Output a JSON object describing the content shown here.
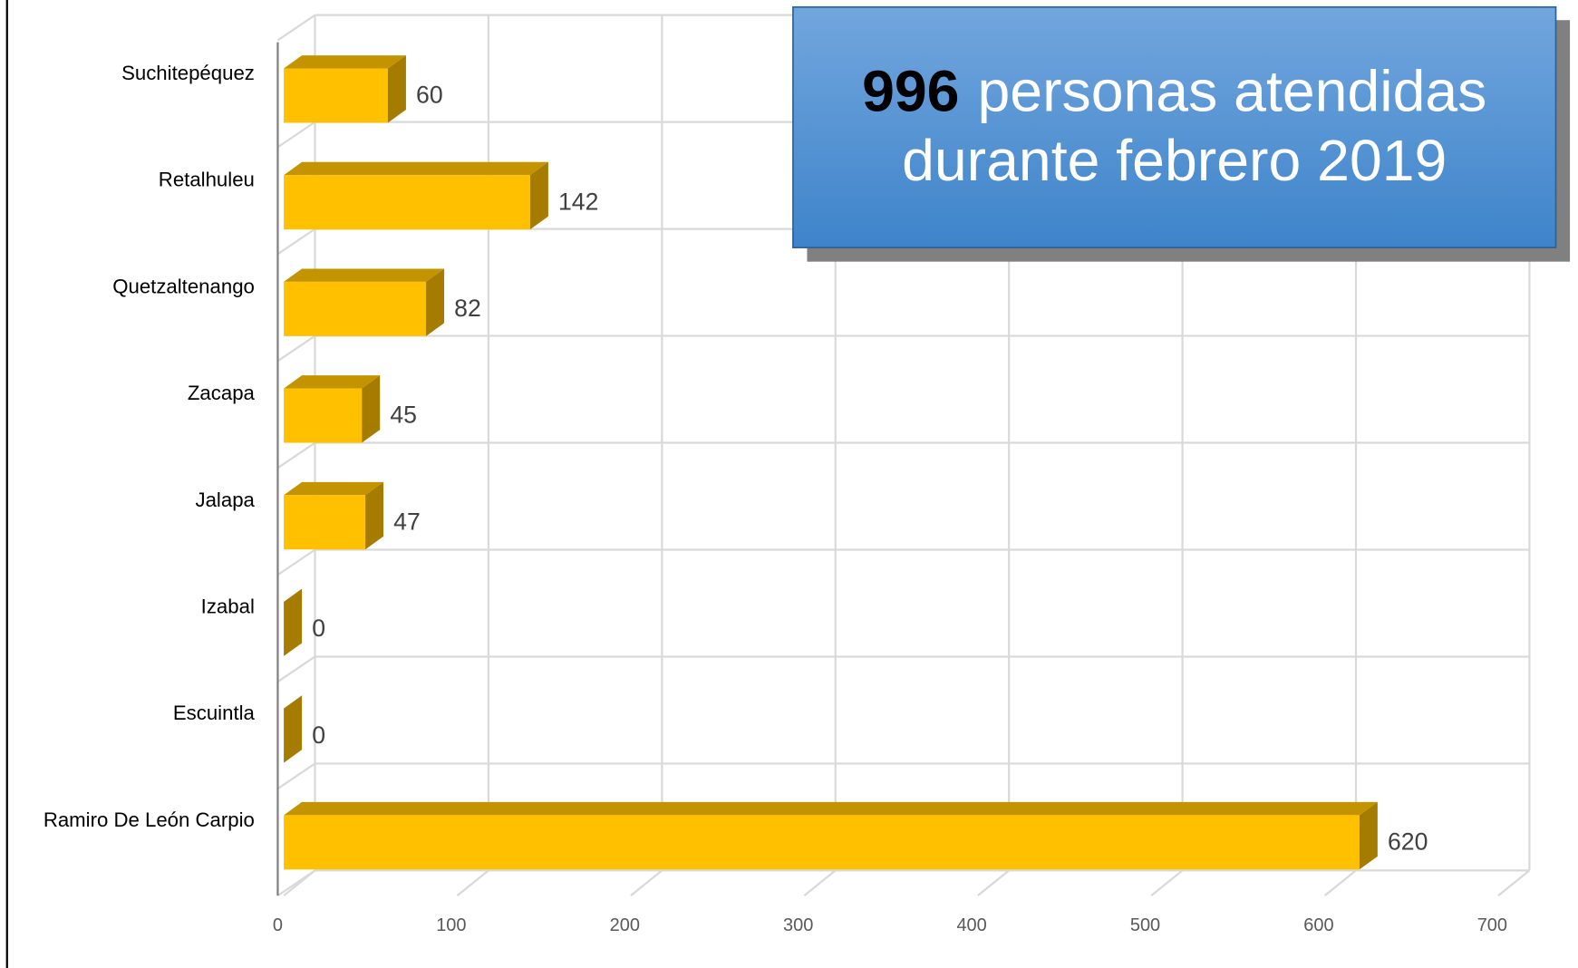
{
  "chart_data": {
    "type": "bar3d_horizontal",
    "title_number": "996",
    "title_lines": [
      "personas atendidas",
      "durante febrero 2019"
    ],
    "categories": [
      "Suchitepéquez",
      "Retalhuleu",
      "Quetzaltenango",
      "Zacapa",
      "Jalapa",
      "Izabal",
      "Escuintla",
      "Ramiro De León Carpio"
    ],
    "values": [
      60,
      142,
      82,
      45,
      47,
      0,
      0,
      620
    ],
    "color": "#ffc000",
    "xlim": [
      0,
      700
    ],
    "xticks": [
      0,
      100,
      200,
      300,
      400,
      500,
      600,
      700
    ],
    "grid": true
  }
}
